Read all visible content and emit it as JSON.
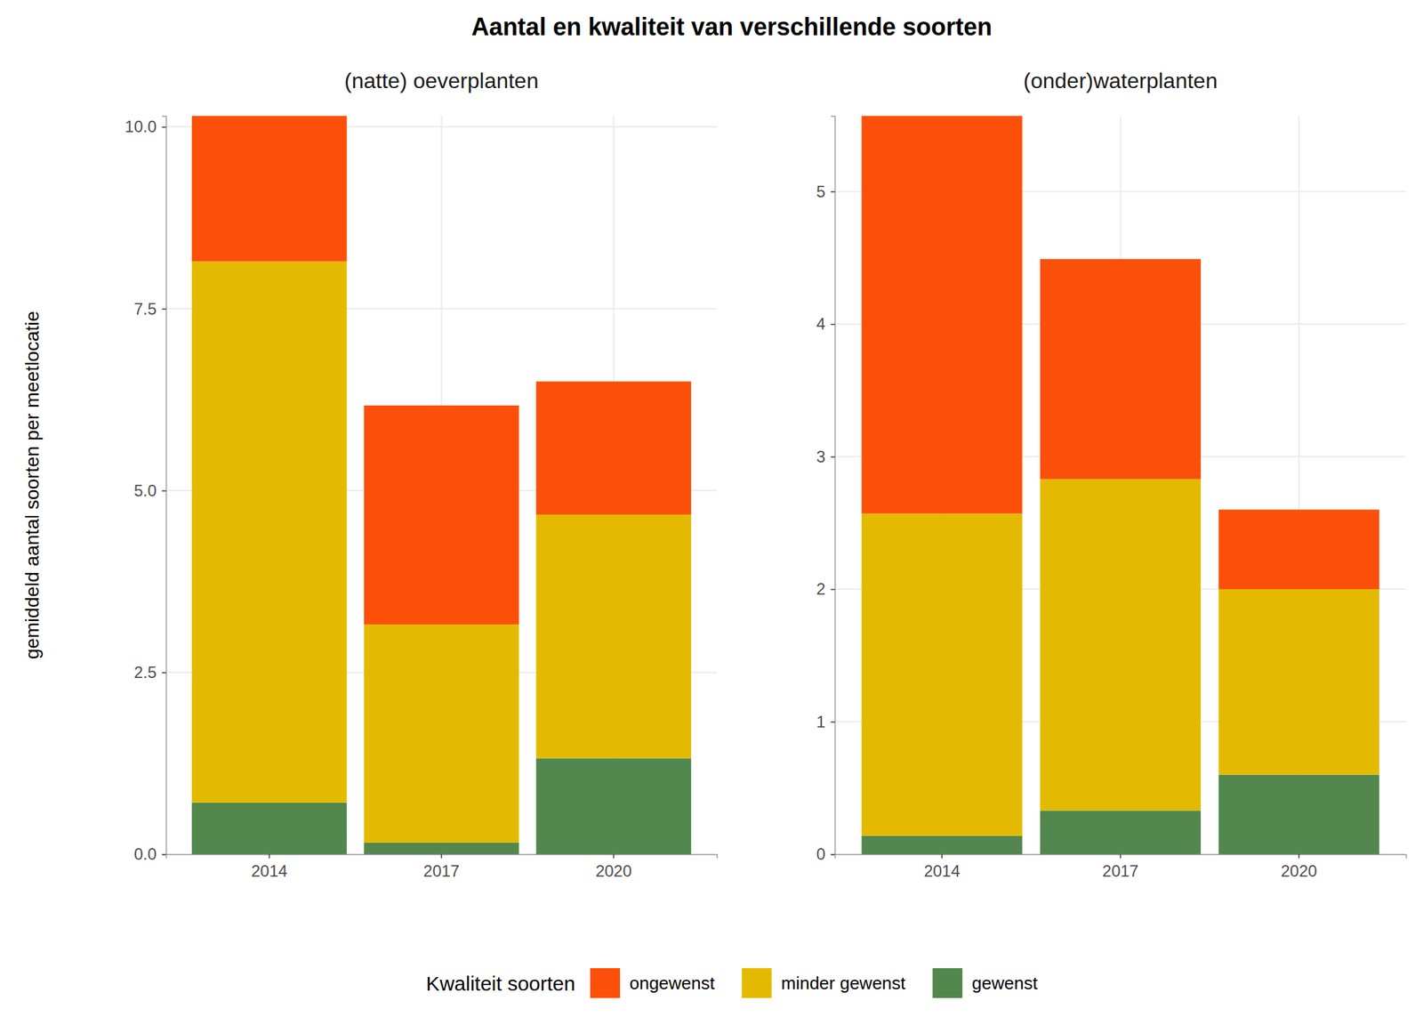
{
  "title": "Aantal en kwaliteit van verschillende soorten",
  "chart_data": [
    {
      "type": "bar",
      "subtitle": "(natte) oeverplanten",
      "y_label": "gemiddeld aantal soorten per meetlocatie",
      "legend": "bottom",
      "legend_title": "Kwaliteit soorten",
      "stacked": true,
      "grid": true,
      "categories": [
        "2014",
        "2017",
        "2020"
      ],
      "series": [
        {
          "name": "ongewenst",
          "color": "#FC500A",
          "values": [
            2.0,
            3.01,
            1.83
          ]
        },
        {
          "name": "minder gewenst",
          "color": "#E4BA00",
          "values": [
            7.44,
            3.0,
            3.35
          ]
        },
        {
          "name": "gewenst",
          "color": "#52874E",
          "values": [
            0.71,
            0.16,
            1.32
          ]
        }
      ],
      "ylim": [
        0,
        10.15
      ],
      "yticks": [
        {
          "value": 0,
          "label": "0.0"
        },
        2.5,
        {
          "value": 5,
          "label": "5.0"
        },
        7.5,
        {
          "value": 10,
          "label": "10.0"
        }
      ]
    },
    {
      "type": "bar",
      "subtitle": "(onder)waterplanten",
      "stacked": true,
      "grid": true,
      "categories": [
        "2014",
        "2017",
        "2020"
      ],
      "series": [
        {
          "name": "ongewenst",
          "color": "#FC500A",
          "values": [
            3.0,
            1.66,
            0.6
          ]
        },
        {
          "name": "minder gewenst",
          "color": "#E4BA00",
          "values": [
            2.43,
            2.5,
            1.4
          ]
        },
        {
          "name": "gewenst",
          "color": "#52874E",
          "values": [
            0.14,
            0.33,
            0.6
          ]
        }
      ],
      "ylim": [
        0,
        5.57
      ],
      "yticks": [
        0,
        1,
        2,
        3,
        4,
        5
      ]
    }
  ]
}
